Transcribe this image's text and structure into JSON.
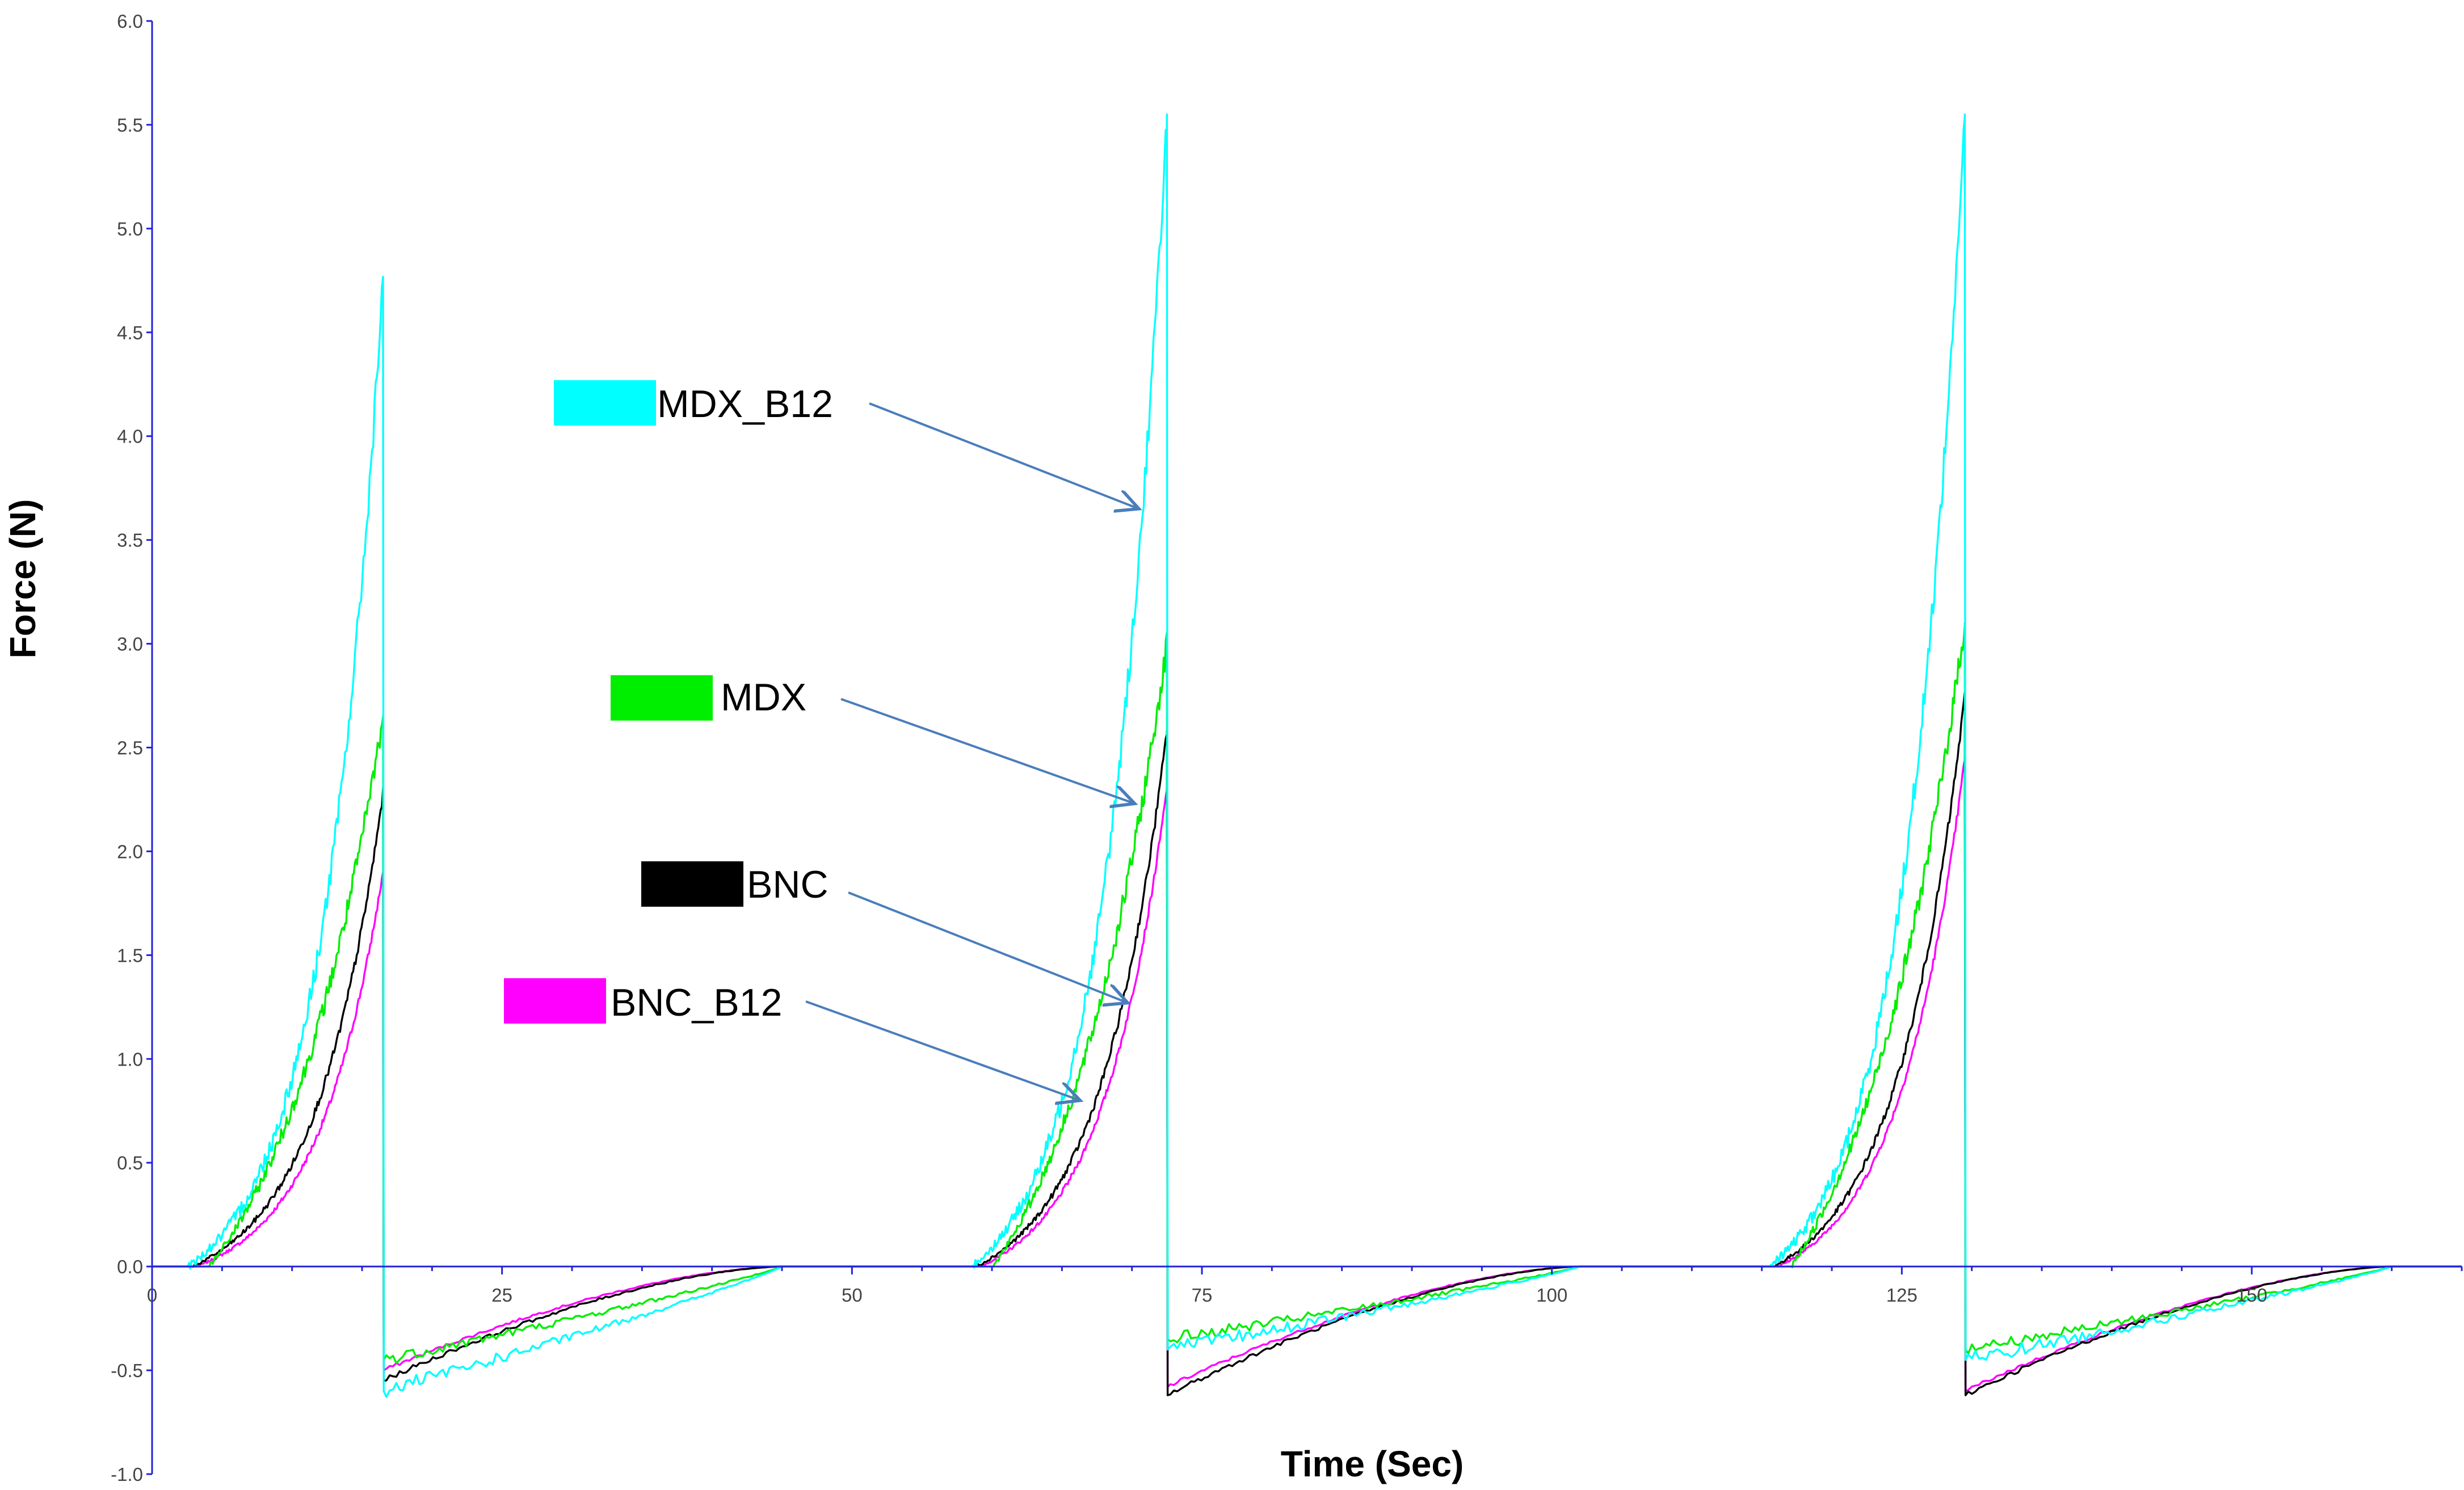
{
  "chart_data": {
    "type": "line",
    "title": "",
    "xlabel": "Time (Sec)",
    "ylabel": "Force (N)",
    "xlim": [
      0,
      165
    ],
    "ylim": [
      -1.0,
      6.0
    ],
    "x_ticks": [
      0,
      25,
      50,
      75,
      100,
      125,
      150
    ],
    "x_tick_labels": [
      "0",
      "25",
      "50",
      "75",
      "100",
      "125",
      "150"
    ],
    "y_ticks": [
      -1.0,
      -0.5,
      0.0,
      0.5,
      1.0,
      1.5,
      2.0,
      2.5,
      3.0,
      3.5,
      4.0,
      4.5,
      5.0,
      5.5,
      6.0
    ],
    "y_tick_labels": [
      "-1.0",
      "-0.5",
      "0.0",
      "0.5",
      "1.0",
      "1.5",
      "2.0",
      "2.5",
      "3.0",
      "3.5",
      "4.0",
      "4.5",
      "5.0",
      "5.5",
      "6.0"
    ],
    "grid": false,
    "cycles": [
      {
        "start": 1,
        "release": 16.5,
        "end": 45
      },
      {
        "start": 57,
        "release": 72.5,
        "end": 102
      },
      {
        "start": 114,
        "release": 129.5,
        "end": 160
      }
    ],
    "series": [
      {
        "name": "MDX_B12",
        "color": "#00ffff",
        "onset": 0.1,
        "shape": 3.2,
        "rebound_shape": 0.9,
        "noise": 0.06,
        "peaks": [
          4.75,
          5.55,
          5.55
        ],
        "minima": [
          -0.6,
          -0.4,
          -0.45
        ]
      },
      {
        "name": "MDX",
        "color": "#00ee00",
        "onset": 0.2,
        "shape": 1.6,
        "rebound_shape": 0.9,
        "noise": 0.05,
        "peaks": [
          2.65,
          3.0,
          3.1
        ],
        "minima": [
          -0.45,
          -0.35,
          -0.4
        ]
      },
      {
        "name": "BNC",
        "color": "#000000",
        "onset": 0.12,
        "shape": 2.8,
        "rebound_shape": 1.6,
        "noise": 0.02,
        "peaks": [
          2.28,
          2.58,
          2.75
        ],
        "minima": [
          -0.55,
          -0.62,
          -0.62
        ]
      },
      {
        "name": "BNC_B12",
        "color": "#ff00ff",
        "onset": 0.14,
        "shape": 2.8,
        "rebound_shape": 1.6,
        "noise": 0.015,
        "peaks": [
          1.9,
          2.3,
          2.45
        ],
        "minima": [
          -0.5,
          -0.58,
          -0.6
        ]
      }
    ],
    "annotations": [
      {
        "label": "MDX_B12",
        "target_x": 70.5,
        "target_y": 3.65
      },
      {
        "label": "MDX",
        "target_x": 70.2,
        "target_y": 2.23
      },
      {
        "label": "BNC",
        "target_x": 69.7,
        "target_y": 1.27
      },
      {
        "label": "BNC_B12",
        "target_x": 66.3,
        "target_y": 0.8
      }
    ]
  }
}
